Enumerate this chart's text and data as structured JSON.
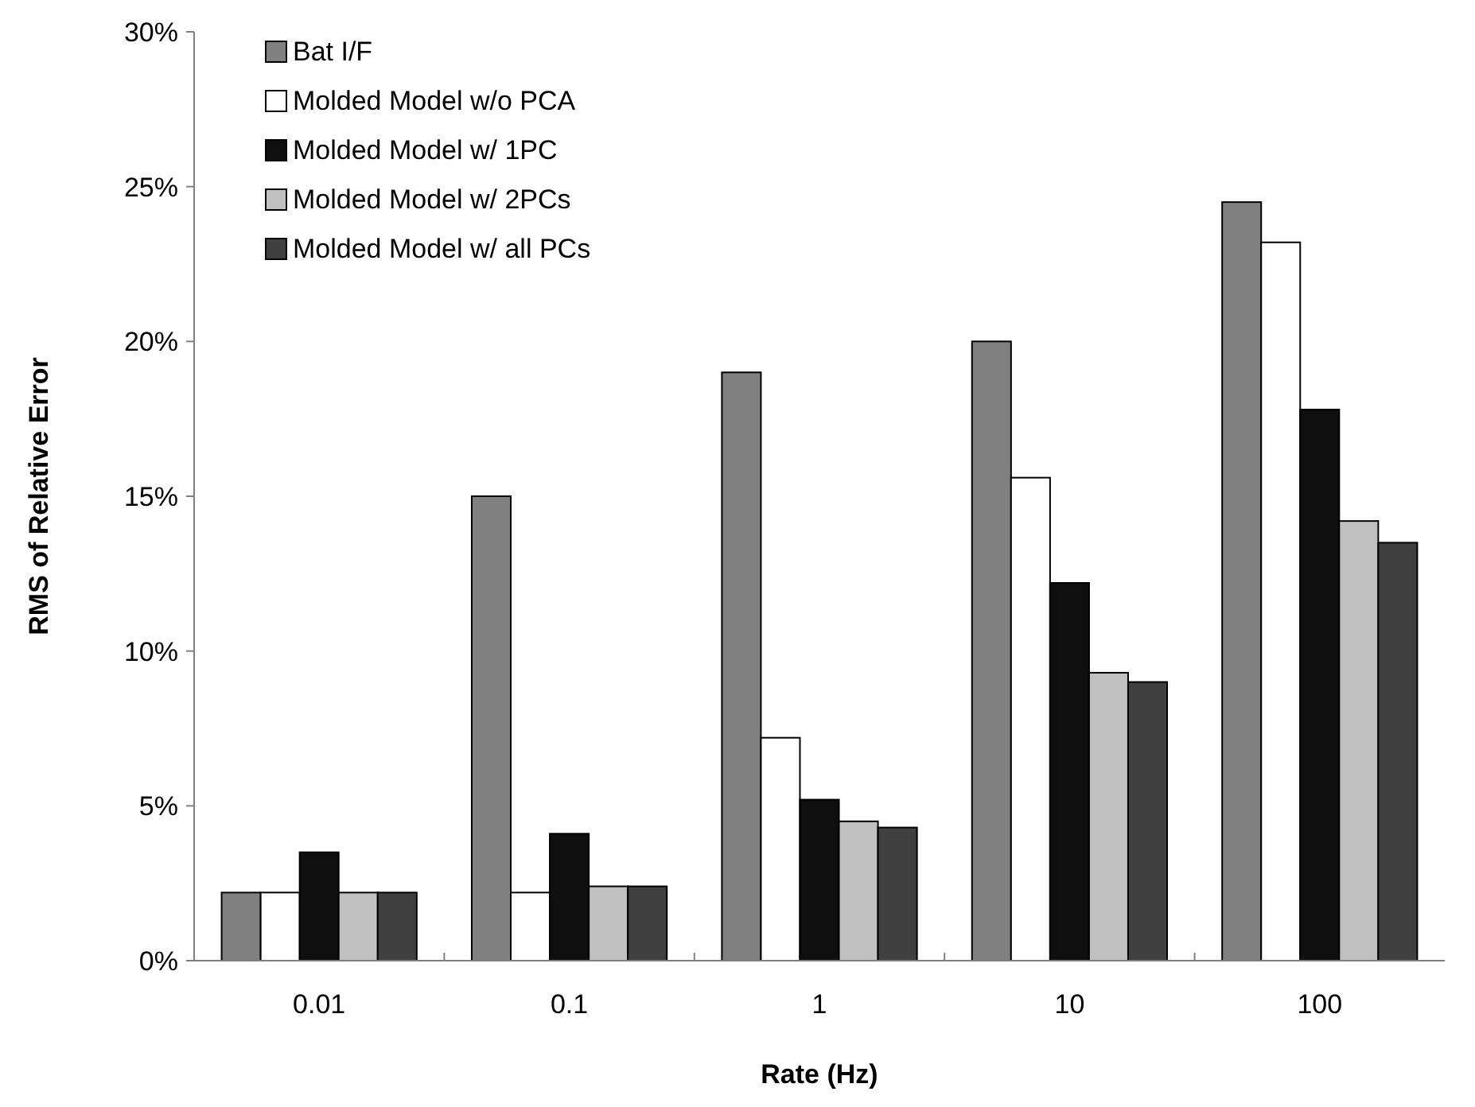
{
  "chart_data": {
    "type": "bar",
    "xlabel": "Rate (Hz)",
    "ylabel": "RMS of Relative Error",
    "categories": [
      "0.01",
      "0.1",
      "1",
      "10",
      "100"
    ],
    "ylim": [
      0,
      30
    ],
    "yticks": [
      {
        "value": 0,
        "label": "0%"
      },
      {
        "value": 5,
        "label": "5%"
      },
      {
        "value": 10,
        "label": "10%"
      },
      {
        "value": 15,
        "label": "15%"
      },
      {
        "value": 20,
        "label": "20%"
      },
      {
        "value": 25,
        "label": "25%"
      },
      {
        "value": 30,
        "label": "30%"
      }
    ],
    "grid": false,
    "legend": "top left",
    "series": [
      {
        "name": "Bat I/F",
        "color": "#808080",
        "values": [
          2.2,
          15,
          19,
          20,
          24.5
        ]
      },
      {
        "name": "Molded Model w/o PCA",
        "color": "#ffffff",
        "values": [
          2.2,
          2.2,
          7.2,
          15.6,
          23.2
        ]
      },
      {
        "name": "Molded Model w/ 1PC",
        "color": "#0f0f0f",
        "values": [
          3.5,
          4.1,
          5.2,
          12.2,
          17.8
        ]
      },
      {
        "name": "Molded Model w/ 2PCs",
        "color": "#c0c0c0",
        "values": [
          2.2,
          2.4,
          4.5,
          9.3,
          14.2
        ]
      },
      {
        "name": "Molded Model w/ all PCs",
        "color": "#404040",
        "values": [
          2.2,
          2.4,
          4.3,
          9.0,
          13.5
        ]
      }
    ]
  }
}
